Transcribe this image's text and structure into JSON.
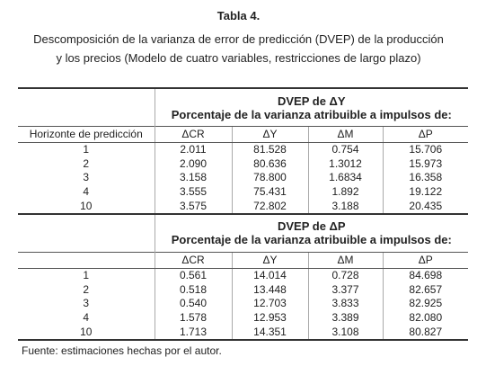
{
  "title": "Tabla 4.",
  "caption": [
    "Descomposición de la varianza de error de predicción (DVEP) de la producción",
    "y los precios (Modelo de cuatro variables, restricciones de largo plazo)"
  ],
  "table": {
    "row_header": "Horizonte de predicción",
    "sections": [
      {
        "title": "DVEP de ΔY",
        "subtitle": "Porcentaje de la varianza atribuible a impulsos de:",
        "columns": [
          "ΔCR",
          "ΔY",
          "ΔM",
          "ΔP"
        ],
        "rows": [
          [
            "1",
            "2.011",
            "81.528",
            "0.754",
            "15.706"
          ],
          [
            "2",
            "2.090",
            "80.636",
            "1.3012",
            "15.973"
          ],
          [
            "3",
            "3.158",
            "78.800",
            "1.6834",
            "16.358"
          ],
          [
            "4",
            "3.555",
            "75.431",
            "1.892",
            "19.122"
          ],
          [
            "10",
            "3.575",
            "72.802",
            "3.188",
            "20.435"
          ]
        ]
      },
      {
        "title": "DVEP de ΔP",
        "subtitle": "Porcentaje de la varianza atribuible a impulsos de:",
        "columns": [
          "ΔCR",
          "ΔY",
          "ΔM",
          "ΔP"
        ],
        "rows": [
          [
            "1",
            "0.561",
            "14.014",
            "0.728",
            "84.698"
          ],
          [
            "2",
            "0.518",
            "13.448",
            "3.377",
            "82.657"
          ],
          [
            "3",
            "0.540",
            "12.703",
            "3.833",
            "82.925"
          ],
          [
            "4",
            "1.578",
            "12.953",
            "3.389",
            "82.080"
          ],
          [
            "10",
            "1.713",
            "14.351",
            "3.108",
            "80.827"
          ]
        ]
      }
    ]
  },
  "footnote": "Fuente: estimaciones hechas por el autor."
}
